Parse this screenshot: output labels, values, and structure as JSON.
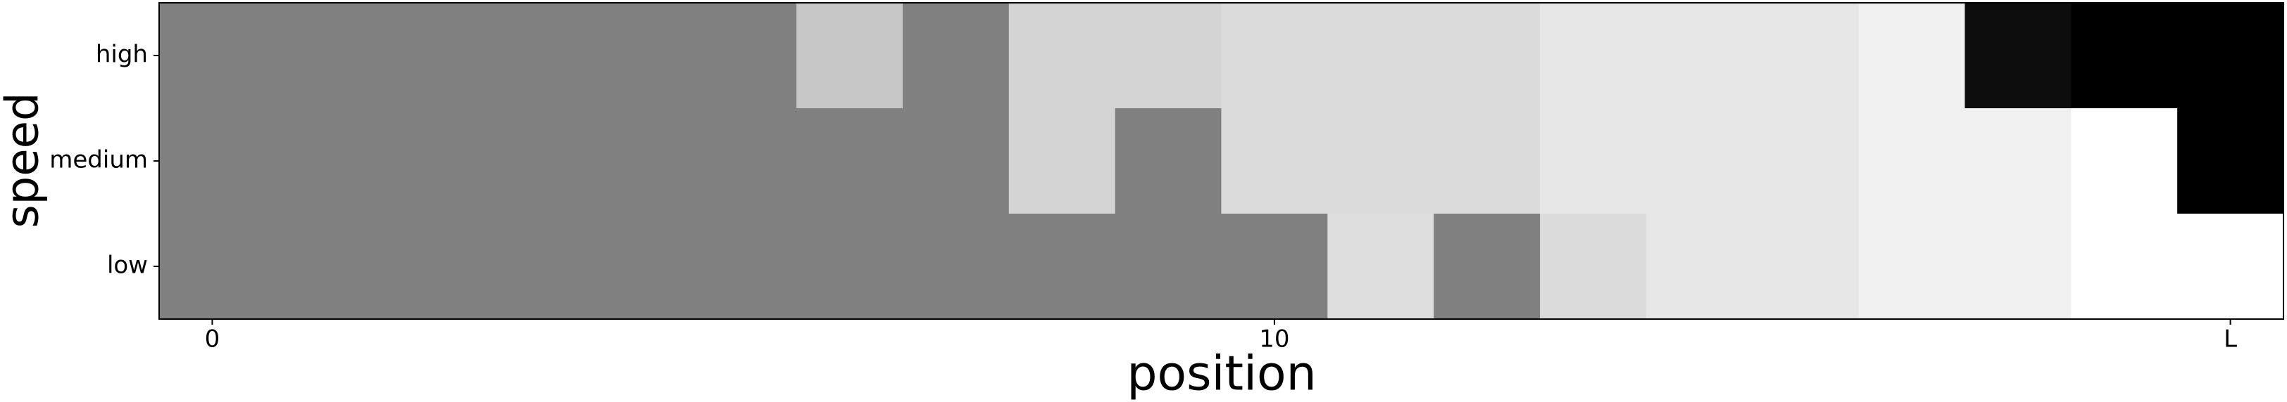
{
  "chart_data": {
    "type": "heatmap",
    "xlabel": "position",
    "ylabel": "speed",
    "x": [
      0,
      1,
      2,
      3,
      4,
      5,
      6,
      7,
      8,
      9,
      10,
      11,
      12,
      13,
      14,
      15,
      16,
      17,
      18,
      19
    ],
    "rows": [
      "high",
      "medium",
      "low"
    ],
    "z": [
      [
        0.5,
        0.5,
        0.5,
        0.5,
        0.5,
        0.5,
        0.22,
        0.5,
        0.17,
        0.17,
        0.14,
        0.14,
        0.14,
        0.1,
        0.1,
        0.1,
        0.06,
        0.95,
        1,
        1
      ],
      [
        0.5,
        0.5,
        0.5,
        0.5,
        0.5,
        0.5,
        0.5,
        0.5,
        0.17,
        0.5,
        0.14,
        0.14,
        0.14,
        0.1,
        0.1,
        0.1,
        0.06,
        0.06,
        0,
        1
      ],
      [
        0.5,
        0.5,
        0.5,
        0.5,
        0.5,
        0.5,
        0.5,
        0.5,
        0.5,
        0.5,
        0.5,
        0.13,
        0.5,
        0.14,
        0.1,
        0.1,
        0.06,
        0.06,
        0,
        0
      ]
    ],
    "colormap": "gray_r",
    "zlim": [
      0,
      1
    ],
    "xlim": [
      -0.5,
      19.5
    ],
    "xticks": [
      0,
      10,
      {
        "value": 19,
        "label": "L"
      }
    ]
  }
}
